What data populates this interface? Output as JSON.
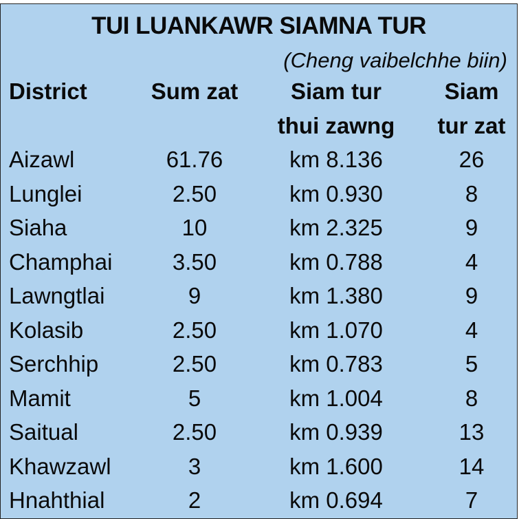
{
  "title": "TUI LUANKAWR SIAMNA TUR",
  "subtitle": "(Cheng vaibelchhe biin)",
  "headers": {
    "district": "District",
    "sum_zat": "Sum zat",
    "thui_line1": "Siam tur",
    "thui_line2": "thui zawng",
    "zat_line1": "Siam",
    "zat_line2": "tur zat"
  },
  "rows": [
    {
      "district": "Aizawl",
      "sum": "61.76",
      "length": "km 8.136",
      "count": "26"
    },
    {
      "district": "Lunglei",
      "sum": "2.50",
      "length": "km 0.930",
      "count": "8"
    },
    {
      "district": "Siaha",
      "sum": "10",
      "length": "km 2.325",
      "count": "9"
    },
    {
      "district": "Champhai",
      "sum": "3.50",
      "length": "km 0.788",
      "count": "4"
    },
    {
      "district": "Lawngtlai",
      "sum": "9",
      "length": "km 1.380",
      "count": "9"
    },
    {
      "district": "Kolasib",
      "sum": "2.50",
      "length": "km 1.070",
      "count": "4"
    },
    {
      "district": "Serchhip",
      "sum": "2.50",
      "length": "km 0.783",
      "count": "5"
    },
    {
      "district": "Mamit",
      "sum": "5",
      "length": "km 1.004",
      "count": "8"
    },
    {
      "district": "Saitual",
      "sum": "2.50",
      "length": "km 0.939",
      "count": "13"
    },
    {
      "district": "Khawzawl",
      "sum": "3",
      "length": "km 1.600",
      "count": "14"
    },
    {
      "district": "Hnahthial",
      "sum": "2",
      "length": "km 0.694",
      "count": "7"
    }
  ],
  "colors": {
    "background": "#b0d2ee",
    "text": "#0a0a0a"
  }
}
